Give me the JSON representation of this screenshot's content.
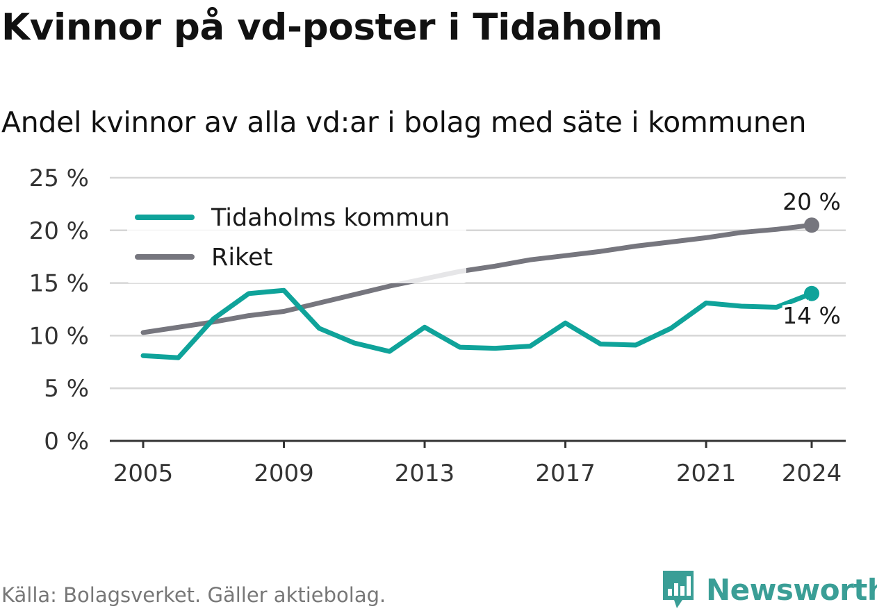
{
  "title": "Kvinnor på vd-poster i Tidaholm",
  "subtitle": "Andel kvinnor av alla vd:ar i bolag med säte i kommunen",
  "source": "Källa: Bolagsverket. Gäller aktiebolag.",
  "brand": {
    "name": "Newsworthy",
    "icon": "bar-chart-logo-icon"
  },
  "colors": {
    "tidaholm": "#0fa39a",
    "riket": "#76767e",
    "grid": "#d6d6d6",
    "axis": "#333333"
  },
  "chart_data": {
    "type": "line",
    "title": "Kvinnor på vd-poster i Tidaholm",
    "subtitle": "Andel kvinnor av alla vd:ar i bolag med säte i kommunen",
    "x": [
      2005,
      2006,
      2007,
      2008,
      2009,
      2010,
      2011,
      2012,
      2013,
      2014,
      2015,
      2016,
      2017,
      2018,
      2019,
      2020,
      2021,
      2022,
      2023,
      2024
    ],
    "x_ticks": [
      2005,
      2009,
      2013,
      2017,
      2021,
      2024
    ],
    "x_tick_labels": [
      "2005",
      "2009",
      "2013",
      "2017",
      "2021",
      "2024"
    ],
    "ylim": [
      0,
      25
    ],
    "y_ticks": [
      0,
      5,
      10,
      15,
      20,
      25
    ],
    "y_tick_labels": [
      "0 %",
      "5 %",
      "10 %",
      "15 %",
      "20 %",
      "25 %"
    ],
    "grid": "horizontal",
    "legend_position": "top-left",
    "series": [
      {
        "name": "Tidaholms kommun",
        "color": "#0fa39a",
        "values": [
          8.1,
          7.9,
          11.6,
          14.0,
          14.3,
          10.7,
          9.3,
          8.5,
          10.8,
          8.9,
          8.8,
          9.0,
          11.2,
          9.2,
          9.1,
          10.7,
          13.1,
          12.8,
          12.7,
          14.0
        ],
        "end_label": "14 %"
      },
      {
        "name": "Riket",
        "color": "#76767e",
        "values": [
          10.3,
          10.8,
          11.3,
          11.9,
          12.3,
          13.1,
          13.9,
          14.7,
          15.4,
          16.1,
          16.6,
          17.2,
          17.6,
          18.0,
          18.5,
          18.9,
          19.3,
          19.8,
          20.1,
          20.5
        ],
        "end_label": "20 %"
      }
    ]
  }
}
